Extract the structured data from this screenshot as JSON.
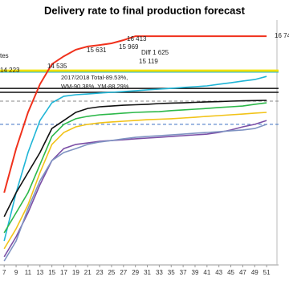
{
  "chart_data": {
    "type": "line",
    "title": "Delivery rate to final production forecast",
    "x": [
      7,
      9,
      11,
      13,
      15,
      17,
      19,
      21,
      23,
      25,
      27,
      29,
      31,
      33,
      35,
      37,
      39,
      41,
      43,
      45,
      47,
      49,
      51
    ],
    "xlim": [
      6.3,
      53
    ],
    "xticks": [
      7,
      9,
      11,
      13,
      15,
      17,
      19,
      21,
      23,
      25,
      27,
      29,
      31,
      33,
      35,
      37,
      39,
      41,
      43,
      45,
      47,
      49,
      51
    ],
    "ylim": [
      0,
      100
    ],
    "series": [
      {
        "color": "#1fb5d6",
        "values": [
          9.8,
          29.5,
          45.9,
          59,
          66.2,
          68.9,
          69.5,
          69.8,
          70.2,
          70.5,
          70.8,
          71.1,
          71.5,
          71.8,
          72.1,
          72.5,
          72.8,
          73.1,
          73.8,
          74.4,
          75.1,
          75.7,
          77
        ]
      },
      {
        "color": "#111111",
        "values": [
          19.7,
          29.5,
          37.7,
          45.9,
          55.7,
          59,
          62.3,
          63.9,
          64.6,
          64.9,
          65.2,
          65.4,
          65.6,
          65.9,
          66.1,
          66.2,
          66.4,
          66.6,
          66.7,
          66.9,
          67,
          67.1,
          67.2
        ]
      },
      {
        "color": "#2db84a",
        "values": [
          13.1,
          21.3,
          29.5,
          41,
          52.5,
          57.4,
          59.7,
          60.7,
          61.3,
          61.6,
          62,
          62.3,
          62.5,
          62.6,
          63,
          63.3,
          63.6,
          63.9,
          64.3,
          64.6,
          64.9,
          65.6,
          66.2
        ]
      },
      {
        "color": "#f2c318",
        "values": [
          6.6,
          14.8,
          24.6,
          37.7,
          49.2,
          54.1,
          56.4,
          57.4,
          58,
          58.4,
          58.7,
          59,
          59.3,
          59.5,
          59.7,
          60,
          60.3,
          60.7,
          61,
          61.3,
          61.6,
          62,
          62.3
        ]
      },
      {
        "color": "#7b4fa6",
        "values": [
          3.3,
          11.5,
          21.3,
          32.8,
          42.6,
          47.5,
          49.2,
          49.8,
          50.5,
          50.8,
          51.1,
          51.5,
          51.8,
          52.1,
          52.5,
          52.8,
          53.1,
          53.4,
          54.1,
          55.1,
          56.4,
          57.4,
          59
        ]
      },
      {
        "color": "#7f93c2",
        "values": [
          1.6,
          9.8,
          23,
          34.4,
          42.6,
          45.9,
          47.5,
          49.2,
          50.2,
          50.8,
          51.5,
          52.1,
          52.5,
          52.8,
          53.1,
          53.4,
          53.8,
          54.1,
          54.4,
          54.8,
          55.1,
          55.7,
          57.4
        ]
      },
      {
        "color": "#f0311c",
        "values": [
          29.5,
          47.5,
          62.3,
          73.8,
          82,
          85.2,
          87.9,
          89.2,
          89.8,
          90.5,
          91.8,
          93.4,
          93.4,
          93.4,
          93.4,
          93.4,
          93.4,
          93.4,
          93.4,
          93.4,
          93.4,
          93.4,
          93.4
        ]
      }
    ],
    "reference_lines": [
      {
        "value": 79.3,
        "color": "#f2e000",
        "dash": false,
        "width": 3
      },
      {
        "value": 78.7,
        "color": "#1fb5d6",
        "dash": false,
        "width": 1
      },
      {
        "value": 72.1,
        "color": "#111111",
        "dash": false,
        "width": 1.5
      },
      {
        "value": 70.5,
        "color": "#111111",
        "dash": false,
        "width": 1.5
      },
      {
        "value": 66.9,
        "color": "#888888",
        "dash": true,
        "width": 1
      },
      {
        "value": 57.4,
        "color": "#3b6fc4",
        "dash": true,
        "width": 1
      }
    ],
    "annotations": [
      "tes",
      "14 223",
      "14 535",
      "15 631",
      "15 969",
      "16 413",
      "Diff 1 625",
      "15 119",
      "16 74",
      "2017/2018 Total-89.53%,",
      "WM-90.38%, YM-88.29%"
    ]
  }
}
